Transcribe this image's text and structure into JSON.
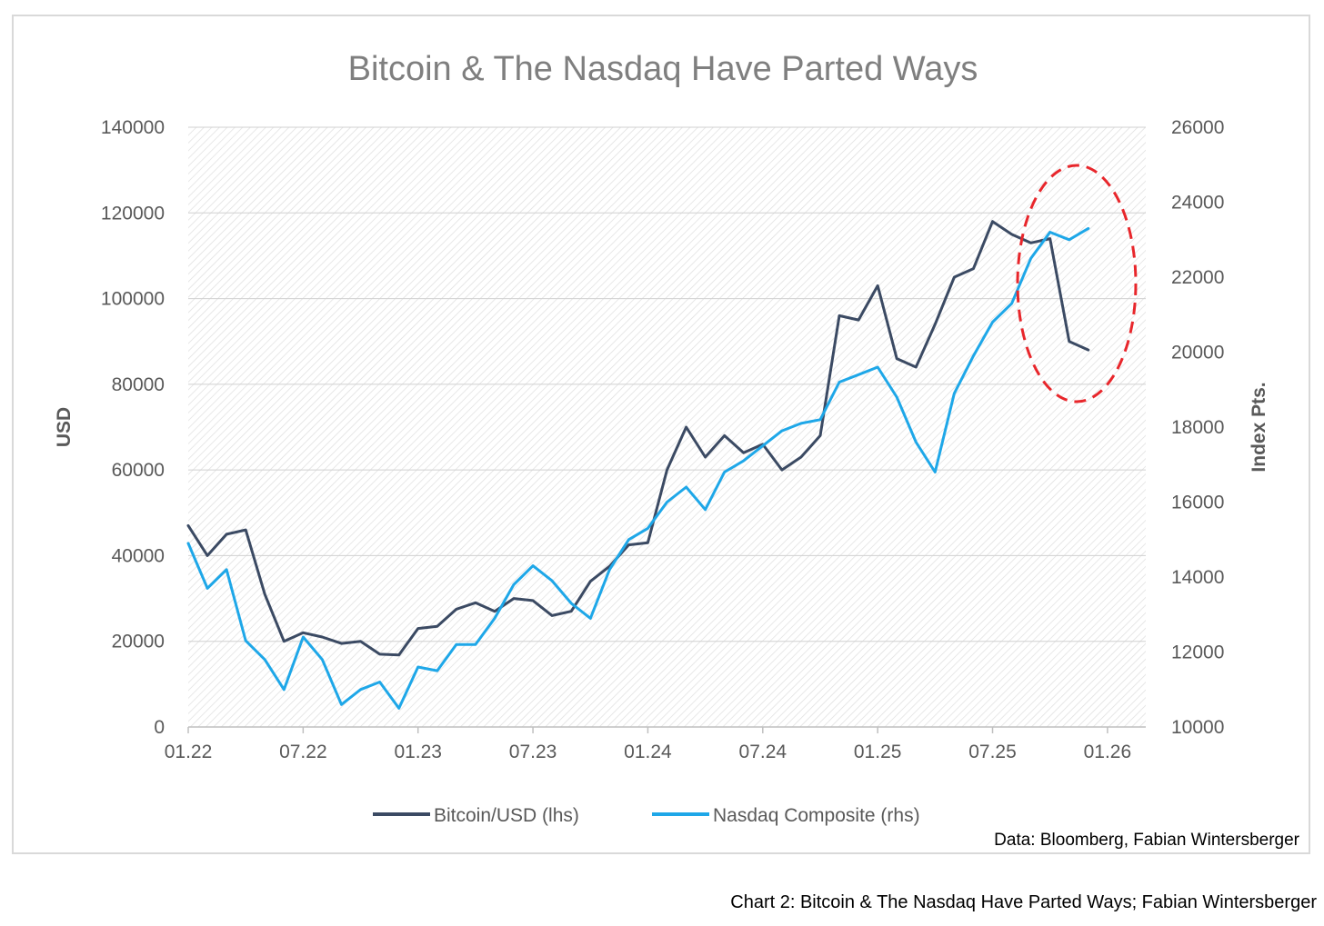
{
  "caption": "Chart 2: Bitcoin & The Nasdaq Have Parted Ways; Fabian Wintersberger",
  "chart_data": {
    "type": "line",
    "title": "Bitcoin & The Nasdaq Have Parted Ways",
    "source": "Data: Bloomberg, Fabian Wintersberger",
    "xlabel": "",
    "ylabel_left": "USD",
    "ylabel_right": "Index Pts.",
    "ylim_left": [
      0,
      140000
    ],
    "ylim_right": [
      10000,
      26000
    ],
    "yticks_left": [
      "0",
      "20000",
      "40000",
      "60000",
      "80000",
      "100000",
      "120000",
      "140000"
    ],
    "yticks_right": [
      "10000",
      "12000",
      "14000",
      "16000",
      "18000",
      "20000",
      "22000",
      "24000",
      "26000"
    ],
    "xticks": [
      "01.22",
      "07.22",
      "01.23",
      "07.23",
      "01.24",
      "07.24",
      "01.25",
      "07.25",
      "01.26"
    ],
    "xlim": [
      "2022-01",
      "2026-03"
    ],
    "grid": "horizontal",
    "legend_position": "bottom",
    "annotation": "red dashed ellipse highlighting late-2025 divergence",
    "series": [
      {
        "name": "Bitcoin/USD (lhs)",
        "axis": "left",
        "color": "#3b4a63",
        "x": [
          "2022-01",
          "2022-02",
          "2022-03",
          "2022-04",
          "2022-05",
          "2022-06",
          "2022-07",
          "2022-08",
          "2022-09",
          "2022-10",
          "2022-11",
          "2022-12",
          "2023-01",
          "2023-02",
          "2023-03",
          "2023-04",
          "2023-05",
          "2023-06",
          "2023-07",
          "2023-08",
          "2023-09",
          "2023-10",
          "2023-11",
          "2023-12",
          "2024-01",
          "2024-02",
          "2024-03",
          "2024-04",
          "2024-05",
          "2024-06",
          "2024-07",
          "2024-08",
          "2024-09",
          "2024-10",
          "2024-11",
          "2024-12",
          "2025-01",
          "2025-02",
          "2025-03",
          "2025-04",
          "2025-05",
          "2025-06",
          "2025-07",
          "2025-08",
          "2025-09",
          "2025-10",
          "2025-11",
          "2025-12"
        ],
        "values": [
          47000,
          40000,
          45000,
          46000,
          31000,
          20000,
          22000,
          21000,
          19500,
          20000,
          17000,
          16800,
          23000,
          23500,
          27500,
          29000,
          27000,
          30000,
          29500,
          26000,
          27000,
          34000,
          37500,
          42500,
          43000,
          60000,
          70000,
          63000,
          68000,
          64000,
          66000,
          60000,
          63000,
          68000,
          96000,
          95000,
          103000,
          86000,
          84000,
          94000,
          105000,
          107000,
          118000,
          115000,
          113000,
          114000,
          90000,
          88000
        ]
      },
      {
        "name": "Nasdaq Composite (rhs)",
        "axis": "right",
        "color": "#1ea7e8",
        "x": [
          "2022-01",
          "2022-02",
          "2022-03",
          "2022-04",
          "2022-05",
          "2022-06",
          "2022-07",
          "2022-08",
          "2022-09",
          "2022-10",
          "2022-11",
          "2022-12",
          "2023-01",
          "2023-02",
          "2023-03",
          "2023-04",
          "2023-05",
          "2023-06",
          "2023-07",
          "2023-08",
          "2023-09",
          "2023-10",
          "2023-11",
          "2023-12",
          "2024-01",
          "2024-02",
          "2024-03",
          "2024-04",
          "2024-05",
          "2024-06",
          "2024-07",
          "2024-08",
          "2024-09",
          "2024-10",
          "2024-11",
          "2024-12",
          "2025-01",
          "2025-02",
          "2025-03",
          "2025-04",
          "2025-05",
          "2025-06",
          "2025-07",
          "2025-08",
          "2025-09",
          "2025-10",
          "2025-11",
          "2025-12"
        ],
        "values": [
          14900,
          13700,
          14200,
          12300,
          11800,
          11000,
          12400,
          11800,
          10600,
          11000,
          11200,
          10500,
          11600,
          11500,
          12200,
          12200,
          12900,
          13800,
          14300,
          13900,
          13300,
          12900,
          14200,
          15000,
          15300,
          16000,
          16400,
          15800,
          16800,
          17100,
          17500,
          17900,
          18100,
          18200,
          19200,
          19400,
          19600,
          18800,
          17600,
          16800,
          18900,
          19900,
          20800,
          21300,
          22500,
          23200,
          23000,
          23300
        ]
      }
    ]
  }
}
